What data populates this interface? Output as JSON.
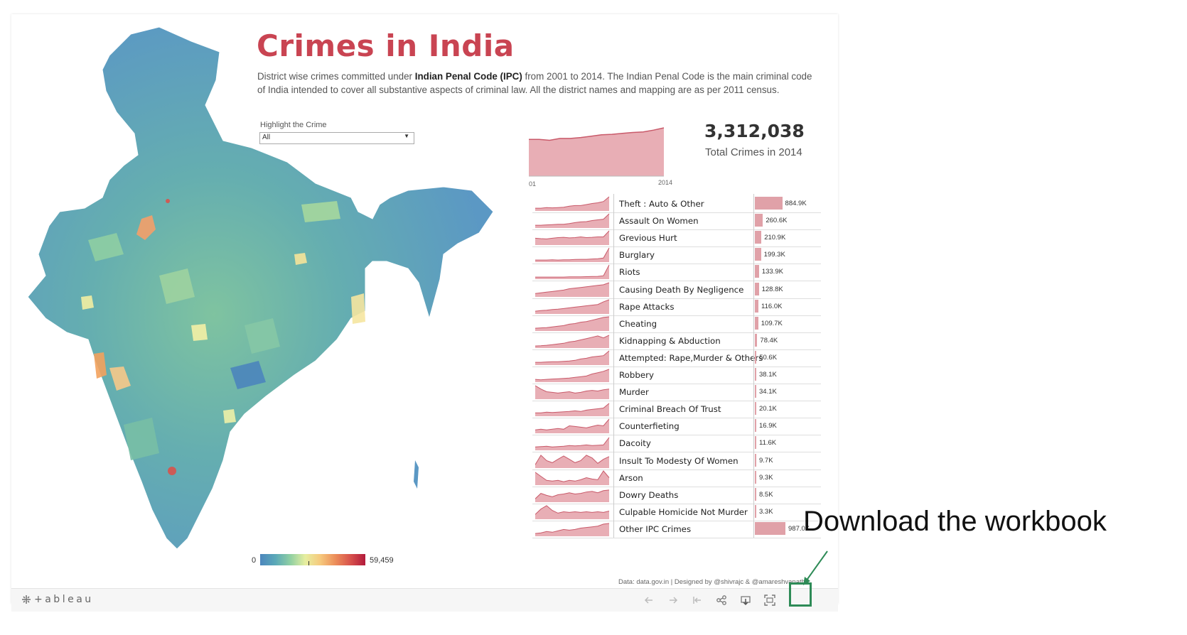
{
  "dashboard": {
    "title": "Crimes in India",
    "description_prefix": "District wise crimes committed under ",
    "description_bold": "Indian Penal Code (IPC)",
    "description_suffix": " from 2001 to 2014. The Indian Penal Code is the main criminal code of India intended to cover all substantive aspects of criminal law. All the district names and mapping are as per 2011 census.",
    "filter": {
      "label": "Highlight the Crime",
      "value": "All"
    },
    "total": {
      "value": "3,312,038",
      "label": "Total Crimes in 2014"
    },
    "trend_axis": {
      "start": "2001",
      "end": "2014"
    },
    "legend": {
      "min": "0",
      "max": "59,459"
    },
    "credits": "Data: data.gov.in   |   Designed by @shivrajc  &  @amareshvanathd"
  },
  "colors": {
    "title": "#c94452",
    "bar": "#e0a1a8",
    "spark_fill": "#e8aeb5",
    "spark_line": "#c95a6a",
    "highlight": "#2e8b57"
  },
  "chart_data": [
    {
      "type": "area",
      "x": [
        2001,
        2002,
        2003,
        2004,
        2005,
        2006,
        2007,
        2008,
        2009,
        2010,
        2011,
        2012,
        2013,
        2014
      ],
      "values": [
        0.8,
        0.8,
        0.78,
        0.82,
        0.82,
        0.84,
        0.87,
        0.9,
        0.91,
        0.93,
        0.95,
        0.96,
        1.0,
        1.05
      ],
      "xlabel": "",
      "ylabel": ""
    },
    {
      "type": "bar",
      "title": "",
      "categories": [
        "Theft : Auto & Other",
        "Assault On Women",
        "Grevious Hurt",
        "Burglary",
        "Riots",
        "Causing Death By Negligence",
        "Rape Attacks",
        "Cheating",
        "Kidnapping & Abduction",
        "Attempted: Rape,Murder & Others",
        "Robbery",
        "Murder",
        "Criminal Breach Of Trust",
        "Counterfieting",
        "Dacoity",
        "Insult To Modesty Of Women",
        "Arson",
        "Dowry Deaths",
        "Culpable Homicide Not Murder",
        "Other IPC Crimes"
      ],
      "values": [
        884900,
        260600,
        210900,
        199300,
        133900,
        128800,
        116000,
        109700,
        78400,
        50600,
        38100,
        34100,
        20100,
        16900,
        11600,
        9700,
        9300,
        8500,
        3300,
        987000
      ],
      "labels": [
        "884.9K",
        "260.6K",
        "210.9K",
        "199.3K",
        "133.9K",
        "128.8K",
        "116.0K",
        "109.7K",
        "78.4K",
        "50.6K",
        "38.1K",
        "34.1K",
        "20.1K",
        "16.9K",
        "11.6K",
        "9.7K",
        "9.3K",
        "8.5K",
        "3.3K",
        "987.0K"
      ]
    }
  ],
  "sparklines": [
    [
      0.15,
      0.15,
      0.2,
      0.18,
      0.2,
      0.22,
      0.3,
      0.35,
      0.35,
      0.42,
      0.5,
      0.55,
      0.65,
      1.0
    ],
    [
      0.15,
      0.15,
      0.18,
      0.2,
      0.22,
      0.22,
      0.28,
      0.35,
      0.4,
      0.42,
      0.5,
      0.55,
      0.6,
      1.0
    ],
    [
      0.45,
      0.42,
      0.4,
      0.45,
      0.5,
      0.52,
      0.48,
      0.5,
      0.55,
      0.5,
      0.52,
      0.55,
      0.55,
      1.0
    ],
    [
      0.1,
      0.1,
      0.1,
      0.12,
      0.1,
      0.12,
      0.12,
      0.14,
      0.15,
      0.15,
      0.18,
      0.2,
      0.25,
      1.0
    ],
    [
      0.1,
      0.1,
      0.1,
      0.1,
      0.1,
      0.1,
      0.12,
      0.12,
      0.12,
      0.13,
      0.14,
      0.15,
      0.2,
      1.0
    ],
    [
      0.2,
      0.25,
      0.3,
      0.35,
      0.4,
      0.45,
      0.55,
      0.6,
      0.65,
      0.7,
      0.75,
      0.8,
      0.85,
      1.0
    ],
    [
      0.15,
      0.2,
      0.22,
      0.28,
      0.3,
      0.35,
      0.4,
      0.45,
      0.5,
      0.55,
      0.6,
      0.65,
      0.85,
      1.0
    ],
    [
      0.15,
      0.18,
      0.2,
      0.25,
      0.3,
      0.35,
      0.45,
      0.5,
      0.6,
      0.65,
      0.75,
      0.85,
      0.95,
      1.0
    ],
    [
      0.1,
      0.12,
      0.15,
      0.2,
      0.25,
      0.3,
      0.4,
      0.45,
      0.55,
      0.65,
      0.75,
      0.85,
      0.7,
      0.9
    ],
    [
      0.15,
      0.15,
      0.18,
      0.2,
      0.2,
      0.22,
      0.25,
      0.3,
      0.4,
      0.45,
      0.55,
      0.6,
      0.65,
      1.0
    ],
    [
      0.15,
      0.12,
      0.15,
      0.18,
      0.2,
      0.22,
      0.25,
      0.3,
      0.35,
      0.4,
      0.55,
      0.65,
      0.75,
      0.9
    ],
    [
      0.95,
      0.7,
      0.5,
      0.45,
      0.4,
      0.45,
      0.5,
      0.4,
      0.45,
      0.55,
      0.6,
      0.55,
      0.65,
      0.7
    ],
    [
      0.2,
      0.2,
      0.25,
      0.22,
      0.25,
      0.28,
      0.3,
      0.35,
      0.3,
      0.4,
      0.45,
      0.5,
      0.55,
      0.9
    ],
    [
      0.2,
      0.25,
      0.2,
      0.25,
      0.3,
      0.25,
      0.5,
      0.45,
      0.4,
      0.35,
      0.45,
      0.55,
      0.5,
      1.0
    ],
    [
      0.2,
      0.22,
      0.25,
      0.2,
      0.22,
      0.25,
      0.3,
      0.28,
      0.3,
      0.35,
      0.3,
      0.32,
      0.35,
      0.9
    ],
    [
      0.2,
      0.9,
      0.5,
      0.35,
      0.6,
      0.85,
      0.6,
      0.35,
      0.5,
      0.9,
      0.7,
      0.3,
      0.6,
      0.8
    ],
    [
      0.9,
      0.6,
      0.3,
      0.25,
      0.3,
      0.2,
      0.3,
      0.25,
      0.35,
      0.5,
      0.4,
      0.35,
      1.0,
      0.5
    ],
    [
      0.2,
      0.6,
      0.45,
      0.35,
      0.5,
      0.55,
      0.65,
      0.55,
      0.6,
      0.7,
      0.75,
      0.65,
      0.8,
      0.85
    ],
    [
      0.3,
      0.7,
      0.95,
      0.6,
      0.4,
      0.5,
      0.45,
      0.5,
      0.45,
      0.5,
      0.45,
      0.5,
      0.45,
      0.55
    ],
    [
      0.15,
      0.2,
      0.3,
      0.25,
      0.35,
      0.45,
      0.4,
      0.45,
      0.55,
      0.6,
      0.65,
      0.7,
      0.85,
      0.9
    ]
  ],
  "annotation": {
    "text": "Download the workbook"
  },
  "toolbar": {
    "logo": "+ableau",
    "icons": [
      "undo-icon",
      "redo-icon",
      "revert-icon",
      "share-icon",
      "download-icon",
      "fullscreen-icon"
    ]
  }
}
